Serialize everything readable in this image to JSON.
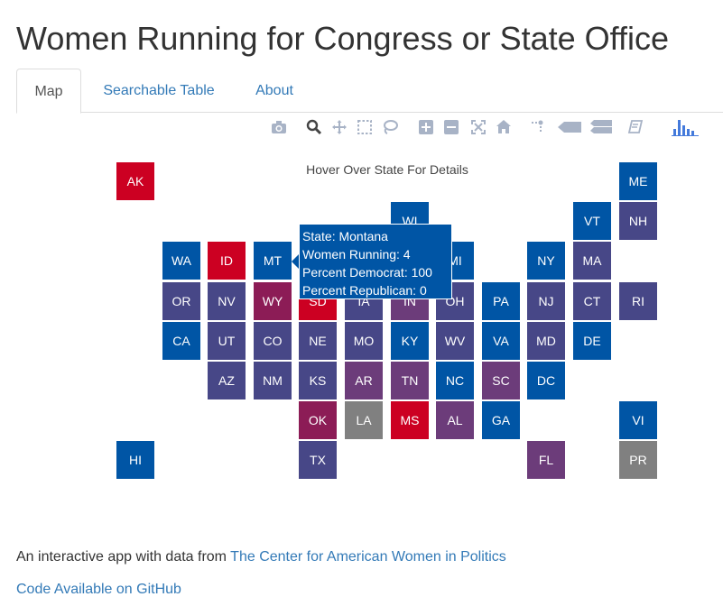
{
  "page": {
    "title": "Women Running for Congress or State Office"
  },
  "tabs": [
    {
      "label": "Map",
      "active": true
    },
    {
      "label": "Searchable Table",
      "active": false
    },
    {
      "label": "About",
      "active": false
    }
  ],
  "modebar": [
    {
      "name": "camera-icon"
    },
    {
      "name": "zoom-icon"
    },
    {
      "name": "pan-icon"
    },
    {
      "name": "box-select-icon"
    },
    {
      "name": "lasso-select-icon"
    },
    {
      "name": "zoom-in-icon"
    },
    {
      "name": "zoom-out-icon"
    },
    {
      "name": "autoscale-icon"
    },
    {
      "name": "reset-axes-icon"
    },
    {
      "name": "toggle-spikelines-icon"
    },
    {
      "name": "hover-closest-icon"
    },
    {
      "name": "hover-compare-icon"
    },
    {
      "name": "edit-chart-icon"
    },
    {
      "name": "plotly-logo-icon"
    }
  ],
  "colors": {
    "blue": "#0055a5",
    "purple_blue": "#474787",
    "purple": "#6c3c7a",
    "magenta": "#8c1c56",
    "red": "#cc0022",
    "gray": "#808080",
    "link": "#337ab7",
    "modebar_icon": "#a8b3c6",
    "logo": "#447adb"
  },
  "map": {
    "title": "Hover Over State For Details",
    "states": [
      {
        "code": "AK",
        "row": 0,
        "col": 0,
        "color": "red"
      },
      {
        "code": "ME",
        "row": 0,
        "col": 11,
        "color": "blue"
      },
      {
        "code": "WI",
        "row": 1,
        "col": 6,
        "color": "blue"
      },
      {
        "code": "VT",
        "row": 1,
        "col": 10,
        "color": "blue"
      },
      {
        "code": "NH",
        "row": 1,
        "col": 11,
        "color": "purple_blue"
      },
      {
        "code": "WA",
        "row": 2,
        "col": 1,
        "color": "blue"
      },
      {
        "code": "ID",
        "row": 2,
        "col": 2,
        "color": "red"
      },
      {
        "code": "MT",
        "row": 2,
        "col": 3,
        "color": "blue"
      },
      {
        "code": "MI",
        "row": 2,
        "col": 7,
        "color": "blue"
      },
      {
        "code": "NY",
        "row": 2,
        "col": 9,
        "color": "blue"
      },
      {
        "code": "MA",
        "row": 2,
        "col": 10,
        "color": "purple_blue"
      },
      {
        "code": "OR",
        "row": 3,
        "col": 1,
        "color": "purple_blue"
      },
      {
        "code": "NV",
        "row": 3,
        "col": 2,
        "color": "purple_blue"
      },
      {
        "code": "WY",
        "row": 3,
        "col": 3,
        "color": "magenta"
      },
      {
        "code": "SD",
        "row": 3,
        "col": 4,
        "color": "red"
      },
      {
        "code": "IA",
        "row": 3,
        "col": 5,
        "color": "purple_blue"
      },
      {
        "code": "IN",
        "row": 3,
        "col": 6,
        "color": "purple"
      },
      {
        "code": "OH",
        "row": 3,
        "col": 7,
        "color": "purple_blue"
      },
      {
        "code": "PA",
        "row": 3,
        "col": 8,
        "color": "blue"
      },
      {
        "code": "NJ",
        "row": 3,
        "col": 9,
        "color": "purple_blue"
      },
      {
        "code": "CT",
        "row": 3,
        "col": 10,
        "color": "purple_blue"
      },
      {
        "code": "RI",
        "row": 3,
        "col": 11,
        "color": "purple_blue"
      },
      {
        "code": "CA",
        "row": 4,
        "col": 1,
        "color": "blue"
      },
      {
        "code": "UT",
        "row": 4,
        "col": 2,
        "color": "purple_blue"
      },
      {
        "code": "CO",
        "row": 4,
        "col": 3,
        "color": "purple_blue"
      },
      {
        "code": "NE",
        "row": 4,
        "col": 4,
        "color": "purple_blue"
      },
      {
        "code": "MO",
        "row": 4,
        "col": 5,
        "color": "purple_blue"
      },
      {
        "code": "KY",
        "row": 4,
        "col": 6,
        "color": "blue"
      },
      {
        "code": "WV",
        "row": 4,
        "col": 7,
        "color": "purple_blue"
      },
      {
        "code": "VA",
        "row": 4,
        "col": 8,
        "color": "blue"
      },
      {
        "code": "MD",
        "row": 4,
        "col": 9,
        "color": "purple_blue"
      },
      {
        "code": "DE",
        "row": 4,
        "col": 10,
        "color": "blue"
      },
      {
        "code": "AZ",
        "row": 5,
        "col": 2,
        "color": "purple_blue"
      },
      {
        "code": "NM",
        "row": 5,
        "col": 3,
        "color": "purple_blue"
      },
      {
        "code": "KS",
        "row": 5,
        "col": 4,
        "color": "purple_blue"
      },
      {
        "code": "AR",
        "row": 5,
        "col": 5,
        "color": "purple"
      },
      {
        "code": "TN",
        "row": 5,
        "col": 6,
        "color": "purple"
      },
      {
        "code": "NC",
        "row": 5,
        "col": 7,
        "color": "blue"
      },
      {
        "code": "SC",
        "row": 5,
        "col": 8,
        "color": "purple"
      },
      {
        "code": "DC",
        "row": 5,
        "col": 9,
        "color": "blue"
      },
      {
        "code": "OK",
        "row": 6,
        "col": 4,
        "color": "magenta"
      },
      {
        "code": "LA",
        "row": 6,
        "col": 5,
        "color": "gray"
      },
      {
        "code": "MS",
        "row": 6,
        "col": 6,
        "color": "red"
      },
      {
        "code": "AL",
        "row": 6,
        "col": 7,
        "color": "purple"
      },
      {
        "code": "GA",
        "row": 6,
        "col": 8,
        "color": "blue"
      },
      {
        "code": "VI",
        "row": 6,
        "col": 11,
        "color": "blue"
      },
      {
        "code": "HI",
        "row": 7,
        "col": 0,
        "color": "blue"
      },
      {
        "code": "TX",
        "row": 7,
        "col": 4,
        "color": "purple_blue"
      },
      {
        "code": "FL",
        "row": 7,
        "col": 9,
        "color": "purple"
      },
      {
        "code": "PR",
        "row": 7,
        "col": 11,
        "color": "gray"
      }
    ]
  },
  "tooltip": {
    "line1": "State: Montana",
    "line2": "Women Running: 4",
    "line3": "Percent Democrat: 100",
    "line4": "Percent Republican: 0"
  },
  "footer": {
    "intro": "An interactive app with data from ",
    "source_link": "The Center for American Women in Politics",
    "github_link": "Code Available on GitHub"
  }
}
